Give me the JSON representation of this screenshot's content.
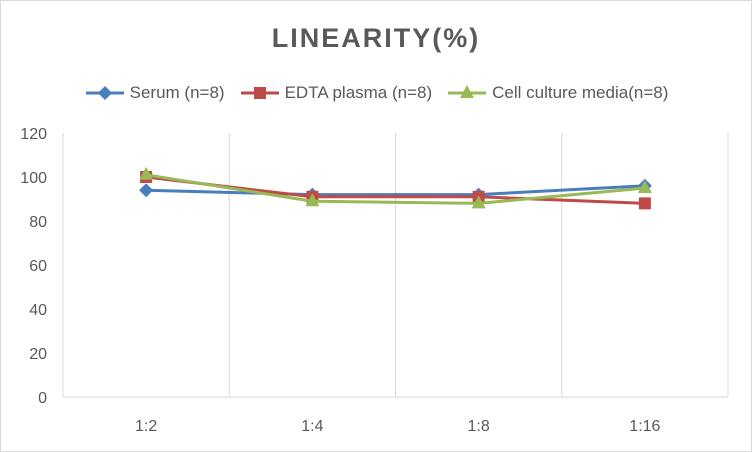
{
  "chart_data": {
    "type": "line",
    "title": "LINEARITY(%)",
    "categories": [
      "1:2",
      "1:4",
      "1:8",
      "1:16"
    ],
    "ylim": [
      0,
      120
    ],
    "yticks": [
      0,
      20,
      40,
      60,
      80,
      100,
      120
    ],
    "grid": "vertical",
    "legend": "top",
    "series": [
      {
        "name": "Serum (n=8)",
        "color": "#4a7ebb",
        "marker": "diamond",
        "values": [
          94,
          92,
          92,
          96
        ]
      },
      {
        "name": "EDTA plasma (n=8)",
        "color": "#be4b48",
        "marker": "square",
        "values": [
          100,
          91,
          91,
          88
        ]
      },
      {
        "name": "Cell culture media(n=8)",
        "color": "#98b954",
        "marker": "triangle",
        "values": [
          101,
          89,
          88,
          95
        ]
      }
    ]
  }
}
